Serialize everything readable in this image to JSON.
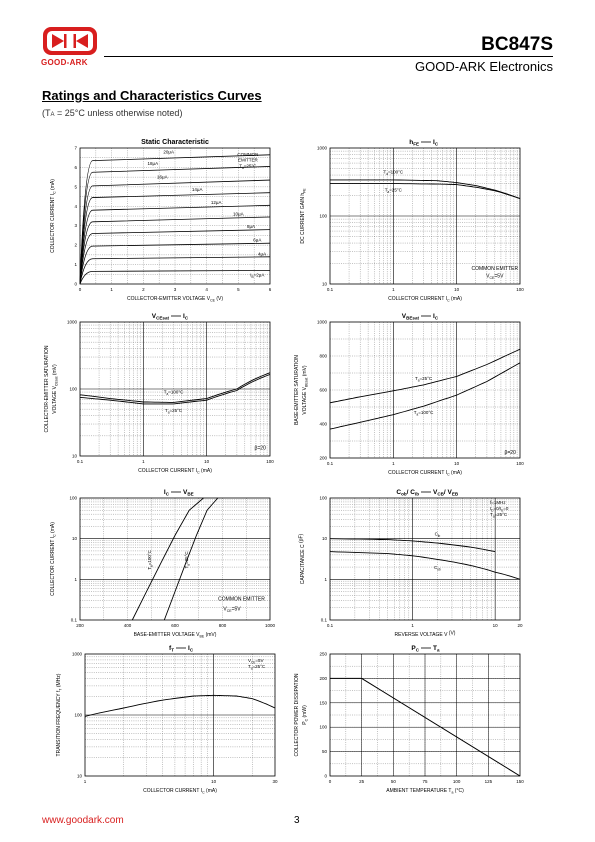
{
  "header": {
    "logo_text": "GOOD-ARK",
    "part_number": "BC847S",
    "company": "GOOD-ARK Electronics",
    "logo_color": "#d81e1e"
  },
  "section": {
    "title": "Ratings and Characteristics Curves",
    "note": "(T",
    "note_sub": "A",
    "note_rest": " = 25°C unless otherwise noted)"
  },
  "footer": {
    "url": "www.goodark.com",
    "page": "3"
  },
  "chart_data": [
    {
      "id": "static",
      "type": "line",
      "title": "Static Characteristic",
      "xlabel": "COLLECTOR-EMITTER VOLTAGE   V",
      "xlabel_sub": "CE",
      "xlabel_unit": "(V)",
      "ylabel": "COLLECTOR CURRENT   I",
      "ylabel_sub": "C",
      "ylabel_unit": "(mA)",
      "xlim": [
        0,
        6
      ],
      "ylim": [
        0,
        7
      ],
      "xticks": [
        0,
        1,
        2,
        3,
        4,
        5,
        6
      ],
      "yticks": [
        0,
        1,
        2,
        3,
        4,
        5,
        6,
        7
      ],
      "annotations": [
        "COMMON",
        "EMITTER",
        "T"
      ],
      "annotation_sub": "a",
      "annotation_rest": "=25°C",
      "series": [
        {
          "name": "20μA",
          "sat": 6.35,
          "end": 6.65
        },
        {
          "name": "18μA",
          "sat": 5.75,
          "end": 6.05
        },
        {
          "name": "16μA",
          "sat": 5.05,
          "end": 5.35
        },
        {
          "name": "14μA",
          "sat": 4.45,
          "end": 4.7
        },
        {
          "name": "12μA",
          "sat": 3.8,
          "end": 4.05
        },
        {
          "name": "10μA",
          "sat": 3.2,
          "end": 3.45
        },
        {
          "name": "8μA",
          "sat": 2.6,
          "end": 2.8
        },
        {
          "name": "6μA",
          "sat": 1.95,
          "end": 2.1
        },
        {
          "name": "4μA",
          "sat": 1.3,
          "end": 1.4
        },
        {
          "name": "2μA",
          "sat": 0.65,
          "end": 0.7
        }
      ],
      "last_label_prefix": "I",
      "last_label_sub": "B"
    },
    {
      "id": "hfe",
      "type": "line",
      "title": "h",
      "title_sub": "FE",
      "title_rest": "I",
      "title_rest_sub": "C",
      "xlabel": "COLLECTOR CURRENT   I",
      "xlabel_sub": "C",
      "xlabel_unit": "(mA)",
      "ylabel": "DC CURRENT GAIN   h",
      "ylabel_sub": "FE",
      "xscale": "log",
      "yscale": "log",
      "xlim": [
        0.1,
        100
      ],
      "ylim": [
        10,
        1000
      ],
      "xticks": [
        "0.1",
        "1",
        "10",
        "100"
      ],
      "yticks": [
        "10",
        "100",
        "1000"
      ],
      "annotations": [
        "COMMON EMITTER",
        "V"
      ],
      "annotation_sub": "CE",
      "annotation_rest": "=5V",
      "series": [
        {
          "name": "T",
          "name_sub": "a",
          "name_rest": "=100°C",
          "x": [
            0.1,
            1,
            5,
            10,
            20,
            40,
            100
          ],
          "y": [
            340,
            340,
            330,
            310,
            280,
            240,
            180
          ]
        },
        {
          "name": "T",
          "name_sub": "a",
          "name_rest": "=25°C",
          "x": [
            0.1,
            1,
            5,
            10,
            20,
            40,
            100
          ],
          "y": [
            300,
            300,
            295,
            290,
            265,
            235,
            180
          ]
        }
      ]
    },
    {
      "id": "vcesat",
      "type": "line",
      "title": "V",
      "title_sub": "CEsat",
      "title_rest": "I",
      "title_rest_sub": "C",
      "xlabel": "COLLECTOR CURRENT   I",
      "xlabel_sub": "C",
      "xlabel_unit": "(mA)",
      "ylabel": "COLLECTOR-EMITTER SATURATION",
      "ylabel2": "VOLTAGE   V",
      "ylabel2_sub": "CEsat",
      "ylabel2_unit": "(mV)",
      "xscale": "log",
      "yscale": "log",
      "xlim": [
        0.1,
        100
      ],
      "ylim": [
        10,
        1000
      ],
      "xticks": [
        "0.1",
        "1",
        "10",
        "100"
      ],
      "yticks": [
        "10",
        "100",
        "1000"
      ],
      "annotations": [
        "β=20"
      ],
      "series": [
        {
          "name": "T",
          "name_sub": "a",
          "name_rest": "=100°C",
          "x": [
            0.1,
            0.3,
            1,
            3,
            10,
            30,
            100
          ],
          "y": [
            82,
            72,
            64,
            63,
            72,
            100,
            175
          ]
        },
        {
          "name": "T",
          "name_sub": "a",
          "name_rest": "=25°C",
          "x": [
            0.1,
            0.3,
            1,
            3,
            10,
            30,
            100
          ],
          "y": [
            75,
            68,
            60,
            60,
            68,
            95,
            165
          ]
        }
      ]
    },
    {
      "id": "vbesat",
      "type": "line",
      "title": "V",
      "title_sub": "BEsat",
      "title_rest": "I",
      "title_rest_sub": "C",
      "xlabel": "COLLECTOR CURRENT   I",
      "xlabel_sub": "C",
      "xlabel_unit": "(mA)",
      "ylabel": "BASE-EMITTER SATURATION",
      "ylabel2": "VOLTAGE   V",
      "ylabel2_sub": "BEsat",
      "ylabel2_unit": "(mV)",
      "xscale": "log",
      "xlim": [
        0.1,
        100
      ],
      "ylim": [
        200,
        1000
      ],
      "xticks": [
        "0.1",
        "1",
        "10",
        "100"
      ],
      "yticks": [
        "200",
        "400",
        "600",
        "800",
        "1000"
      ],
      "annotations": [
        "β=20"
      ],
      "series": [
        {
          "name": "T",
          "name_sub": "a",
          "name_rest": "=25°C",
          "x": [
            0.1,
            0.3,
            1,
            3,
            10,
            30,
            100
          ],
          "y": [
            525,
            560,
            595,
            630,
            680,
            750,
            840
          ]
        },
        {
          "name": "T",
          "name_sub": "a",
          "name_rest": "=100°C",
          "x": [
            0.1,
            0.3,
            1,
            3,
            10,
            30,
            100
          ],
          "y": [
            370,
            410,
            455,
            505,
            570,
            650,
            760
          ]
        }
      ]
    },
    {
      "id": "icvbe",
      "type": "line",
      "title": "I",
      "title_sub": "C",
      "title_rest": "V",
      "title_rest_sub": "BE",
      "xlabel": "BASE-EMITTER VOLTAGE   V",
      "xlabel_sub": "BE",
      "xlabel_unit": "(mV)",
      "ylabel": "COLLECTOR CURRENT   I",
      "ylabel_sub": "C",
      "ylabel_unit": "(mA)",
      "yscale": "log",
      "xlim": [
        200,
        1000
      ],
      "ylim": [
        0.1,
        100
      ],
      "xticks": [
        "200",
        "400",
        "600",
        "800",
        "1000"
      ],
      "yticks": [
        "0.1",
        "1",
        "10",
        "100"
      ],
      "annotations": [
        "COMMON EMITTER",
        "V"
      ],
      "annotation_sub": "CE",
      "annotation_rest": "=5V",
      "series": [
        {
          "name": "T",
          "name_sub": "a",
          "name_rest": "=100°C",
          "x": [
            420,
            480,
            540,
            600,
            660,
            720
          ],
          "y": [
            0.1,
            0.5,
            2.5,
            12,
            50,
            100
          ]
        },
        {
          "name": "T",
          "name_sub": "a",
          "name_rest": "=25°C",
          "x": [
            555,
            600,
            645,
            690,
            735,
            780
          ],
          "y": [
            0.1,
            0.5,
            2.5,
            12,
            50,
            100
          ]
        }
      ]
    },
    {
      "id": "cap",
      "type": "line",
      "title": "C",
      "title_sub": "ob",
      "title_mid": "/ C",
      "title_mid_sub": "ib",
      "title_rest": "V",
      "title_rest_sub": "CB",
      "title_rest2": "/ V",
      "title_rest2_sub": "EB",
      "xlabel": "REVERSE VOLTAGE   V",
      "xlabel_unit": "(V)",
      "ylabel": "CAPACITANCE   C",
      "ylabel_unit": "(pF)",
      "xscale": "log",
      "yscale": "log",
      "xlim": [
        0.1,
        20
      ],
      "ylim": [
        0.1,
        100
      ],
      "xticks": [
        "0.1",
        "1",
        "10",
        "20"
      ],
      "yticks": [
        "0.1",
        "1",
        "10",
        "100"
      ],
      "annotations": [
        "f=1MHz",
        "I",
        "T"
      ],
      "annotation_lines": [
        {
          "a": "f=1MHz",
          "sub": "",
          "b": ""
        },
        {
          "a": "I",
          "sub": "C",
          "b": "=0/I"
        },
        {
          "a": "T",
          "sub": "a",
          "b": "=25°C"
        }
      ],
      "annotation_line2_sub2": "E",
      "annotation_line2_tail": "=0",
      "series": [
        {
          "name": "C",
          "name_sub": "ib",
          "x": [
            0.1,
            0.5,
            1,
            2,
            5,
            10
          ],
          "y": [
            10,
            9.5,
            8.8,
            7.8,
            6.2,
            4.8
          ]
        },
        {
          "name": "C",
          "name_sub": "ob",
          "x": [
            0.1,
            0.5,
            1,
            2,
            5,
            10,
            20
          ],
          "y": [
            4.8,
            4.3,
            3.8,
            3.1,
            2.2,
            1.5,
            1.0
          ]
        }
      ]
    },
    {
      "id": "ft",
      "type": "line",
      "title": "f",
      "title_sub": "T",
      "title_rest": "I",
      "title_rest_sub": "C",
      "xlabel": "COLLECTOR CURRENT   I",
      "xlabel_sub": "C",
      "xlabel_unit": "(mA)",
      "ylabel": "TRANSITION FREQUENCY   f",
      "ylabel_sub": "T",
      "ylabel_unit": "(MHz)",
      "xscale": "log",
      "yscale": "log",
      "xlim": [
        1,
        30
      ],
      "ylim": [
        10,
        1000
      ],
      "xticks": [
        "1",
        "10",
        "30"
      ],
      "yticks": [
        "10",
        "100",
        "1000"
      ],
      "annotation_lines": [
        {
          "a": "V",
          "sub": "CE",
          "b": "=5V"
        },
        {
          "a": "T",
          "sub": "a",
          "b": "=25°C"
        }
      ],
      "series": [
        {
          "name": "fT",
          "x": [
            1,
            2,
            4,
            7,
            10,
            15,
            20,
            30
          ],
          "y": [
            95,
            130,
            175,
            205,
            210,
            205,
            185,
            130
          ]
        }
      ]
    },
    {
      "id": "pc",
      "type": "line",
      "title": "P",
      "title_sub": "C",
      "title_rest": "T",
      "title_rest_sub": "a",
      "xlabel": "AMBIENT TEMPERATURE   T",
      "xlabel_sub": "a",
      "xlabel_unit": "(°C)",
      "ylabel": "COLLECTOR POWER DISSIPATION",
      "ylabel2": "P",
      "ylabel2_sub": "C",
      "ylabel2_unit": "(mW)",
      "xlim": [
        0,
        150
      ],
      "ylim": [
        0,
        250
      ],
      "xticks": [
        "0",
        "25",
        "50",
        "75",
        "100",
        "125",
        "150"
      ],
      "yticks": [
        "0",
        "50",
        "100",
        "150",
        "200",
        "250"
      ],
      "series": [
        {
          "name": "Pc",
          "x": [
            0,
            25,
            150
          ],
          "y": [
            200,
            200,
            0
          ]
        }
      ]
    }
  ]
}
